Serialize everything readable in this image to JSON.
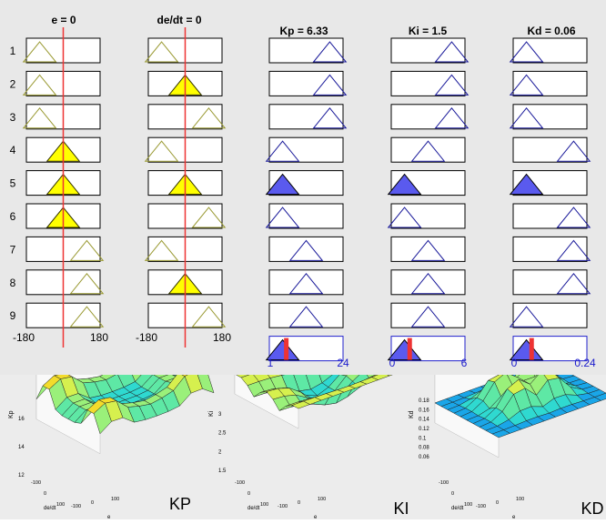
{
  "rule_viewer": {
    "inputs": [
      {
        "label": "e = 0",
        "range_min": "-180",
        "range_max": "180",
        "value_fraction": 0.5
      },
      {
        "label": "de/dt = 0",
        "range_min": "-180",
        "range_max": "180",
        "value_fraction": 0.5
      }
    ],
    "outputs": [
      {
        "label": "Kp = 6.33",
        "range_min": "1",
        "range_max": "24",
        "value_fraction": 0.23
      },
      {
        "label": "Ki = 1.5",
        "range_min": "0",
        "range_max": "6",
        "value_fraction": 0.25
      },
      {
        "label": "Kd = 0.06",
        "range_min": "0",
        "range_max": "0.24",
        "value_fraction": 0.25
      }
    ],
    "rule_numbers": [
      "1",
      "2",
      "3",
      "4",
      "5",
      "6",
      "7",
      "8",
      "9"
    ],
    "rules": [
      {
        "e": "Z",
        "de": "Z",
        "kp": "B",
        "ki": "B",
        "kd": "S"
      },
      {
        "e": "Z",
        "de": "P",
        "kp": "B",
        "ki": "B",
        "kd": "S"
      },
      {
        "e": "Z",
        "de": "B",
        "kp": "B",
        "ki": "B",
        "kd": "S"
      },
      {
        "e": "P",
        "de": "Z",
        "kp": "S",
        "ki": "M",
        "kd": "B"
      },
      {
        "e": "P",
        "de": "P",
        "kp": "S",
        "ki": "S",
        "kd": "S"
      },
      {
        "e": "P",
        "de": "B",
        "kp": "S",
        "ki": "S",
        "kd": "B"
      },
      {
        "e": "B",
        "de": "Z",
        "kp": "M",
        "ki": "M",
        "kd": "B"
      },
      {
        "e": "B",
        "de": "P",
        "kp": "M",
        "ki": "M",
        "kd": "B"
      },
      {
        "e": "B",
        "de": "B",
        "kp": "M",
        "ki": "M",
        "kd": "S"
      }
    ],
    "colors": {
      "input_fill": "#ffff00",
      "input_line": "#9a9a33",
      "output_fill": "#5a5aee",
      "output_line": "#1a1a9a",
      "marker": "#ee3333",
      "range_text_out": "#1a1acc"
    }
  },
  "surfaces": [
    {
      "id": "kp",
      "caption": "KP",
      "z_label": "Kp",
      "z_ticks": [
        "12",
        "14",
        "16"
      ],
      "x_label": "de/dt",
      "y_label": "e",
      "x_ticks": [
        "-100",
        "0",
        "100"
      ],
      "y_ticks": [
        "-100",
        "0",
        "100"
      ]
    },
    {
      "id": "ki",
      "caption": "KI",
      "z_label": "Ki",
      "z_ticks": [
        "1.5",
        "2",
        "2.5",
        "3"
      ],
      "x_label": "de/dt",
      "y_label": "e",
      "x_ticks": [
        "-100",
        "0",
        "100"
      ],
      "y_ticks": [
        "-100",
        "0",
        "100"
      ]
    },
    {
      "id": "kd",
      "caption": "KD",
      "z_label": "Kd",
      "z_ticks": [
        "0.06",
        "0.08",
        "0.1",
        "0.12",
        "0.14",
        "0.16",
        "0.18"
      ],
      "x_label": "de/dt",
      "y_label": "e",
      "x_ticks": [
        "-100",
        "0",
        "100"
      ],
      "y_ticks": [
        "-100",
        "0",
        "100"
      ]
    }
  ]
}
